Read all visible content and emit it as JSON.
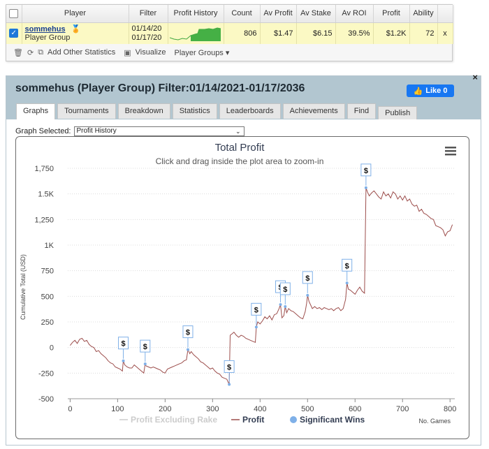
{
  "stats_table": {
    "headers": [
      "Player",
      "Filter",
      "Profit History",
      "Count",
      "Av Profit",
      "Av Stake",
      "Av ROI",
      "Profit",
      "Ability"
    ],
    "row": {
      "player": "sommehus",
      "player_sub": "Player Group",
      "filter_from": "01/14/20",
      "filter_to": "01/17/20",
      "count": "806",
      "av_profit": "$1.47",
      "av_stake": "$6.15",
      "av_roi": "39.5%",
      "profit": "$1.2K",
      "ability": "72",
      "remove": "x"
    },
    "toolbar": {
      "add_stats": "Add Other Statistics",
      "visualize": "Visualize",
      "player_groups": "Player Groups"
    }
  },
  "panel": {
    "title": "sommehus (Player Group) Filter:01/14/2021-01/17/2036",
    "like": "Like 0",
    "close": "×",
    "tabs": [
      "Graphs",
      "Tournaments",
      "Breakdown",
      "Statistics",
      "Leaderboards",
      "Achievements",
      "Find",
      "Publish"
    ],
    "graph_selected_label": "Graph Selected:",
    "graph_selected_value": "Profit History"
  },
  "colors": {
    "profit_line": "#9c4d4b",
    "significant_win": "#7fb0e8",
    "rake_line": "#cccccc",
    "title": "#333d52"
  },
  "chart_data": {
    "type": "line",
    "title": "Total Profit",
    "subtitle": "Click and drag inside the plot area to zoom-in",
    "xlabel": "No. Games",
    "ylabel": "Cumulative Total (USD)",
    "xlim": [
      -5,
      810
    ],
    "ylim": [
      -500,
      1750
    ],
    "x_ticks": [
      0,
      100,
      200,
      300,
      400,
      500,
      600,
      700,
      800
    ],
    "y_ticks": [
      -500,
      -250,
      0,
      250,
      500,
      750,
      1000,
      1250,
      1500,
      1750
    ],
    "y_tick_labels": [
      "-500",
      "-250",
      "0",
      "250",
      "500",
      "750",
      "1K",
      "1,250",
      "1.5K",
      "1,750"
    ],
    "legend": [
      "Profit Excluding Rake",
      "Profit",
      "Significant Wins"
    ],
    "legend_placement": "bottom",
    "series": [
      {
        "name": "Profit",
        "points": [
          [
            0,
            20
          ],
          [
            5,
            50
          ],
          [
            10,
            70
          ],
          [
            15,
            40
          ],
          [
            20,
            80
          ],
          [
            25,
            90
          ],
          [
            30,
            60
          ],
          [
            35,
            70
          ],
          [
            40,
            30
          ],
          [
            45,
            10
          ],
          [
            50,
            0
          ],
          [
            55,
            -40
          ],
          [
            60,
            -30
          ],
          [
            65,
            -60
          ],
          [
            70,
            -80
          ],
          [
            75,
            -100
          ],
          [
            80,
            -130
          ],
          [
            85,
            -150
          ],
          [
            90,
            -160
          ],
          [
            95,
            -190
          ],
          [
            100,
            -200
          ],
          [
            105,
            -210
          ],
          [
            110,
            -230
          ],
          [
            112,
            -130
          ],
          [
            115,
            -170
          ],
          [
            120,
            -190
          ],
          [
            125,
            -200
          ],
          [
            130,
            -200
          ],
          [
            135,
            -170
          ],
          [
            140,
            -190
          ],
          [
            145,
            -210
          ],
          [
            150,
            -230
          ],
          [
            155,
            -250
          ],
          [
            158,
            -160
          ],
          [
            160,
            -180
          ],
          [
            165,
            -190
          ],
          [
            170,
            -200
          ],
          [
            175,
            -190
          ],
          [
            180,
            -200
          ],
          [
            185,
            -210
          ],
          [
            190,
            -220
          ],
          [
            195,
            -240
          ],
          [
            200,
            -250
          ],
          [
            205,
            -210
          ],
          [
            210,
            -200
          ],
          [
            215,
            -190
          ],
          [
            220,
            -180
          ],
          [
            225,
            -170
          ],
          [
            230,
            -160
          ],
          [
            235,
            -150
          ],
          [
            240,
            -130
          ],
          [
            245,
            -120
          ],
          [
            248,
            -20
          ],
          [
            252,
            -60
          ],
          [
            255,
            -40
          ],
          [
            260,
            -70
          ],
          [
            265,
            -90
          ],
          [
            270,
            -110
          ],
          [
            275,
            -140
          ],
          [
            280,
            -150
          ],
          [
            285,
            -170
          ],
          [
            290,
            -190
          ],
          [
            295,
            -210
          ],
          [
            300,
            -200
          ],
          [
            305,
            -230
          ],
          [
            310,
            -250
          ],
          [
            315,
            -260
          ],
          [
            320,
            -290
          ],
          [
            325,
            -300
          ],
          [
            330,
            -310
          ],
          [
            335,
            -360
          ],
          [
            337,
            120
          ],
          [
            340,
            130
          ],
          [
            345,
            150
          ],
          [
            350,
            120
          ],
          [
            355,
            100
          ],
          [
            360,
            120
          ],
          [
            365,
            110
          ],
          [
            370,
            90
          ],
          [
            375,
            80
          ],
          [
            380,
            70
          ],
          [
            385,
            60
          ],
          [
            390,
            50
          ],
          [
            392,
            200
          ],
          [
            395,
            250
          ],
          [
            400,
            230
          ],
          [
            405,
            260
          ],
          [
            410,
            300
          ],
          [
            415,
            280
          ],
          [
            420,
            310
          ],
          [
            425,
            270
          ],
          [
            430,
            320
          ],
          [
            435,
            330
          ],
          [
            440,
            380
          ],
          [
            443,
            420
          ],
          [
            446,
            290
          ],
          [
            450,
            310
          ],
          [
            453,
            400
          ],
          [
            456,
            340
          ],
          [
            460,
            380
          ],
          [
            465,
            360
          ],
          [
            470,
            350
          ],
          [
            475,
            330
          ],
          [
            480,
            310
          ],
          [
            485,
            290
          ],
          [
            490,
            280
          ],
          [
            495,
            350
          ],
          [
            498,
            430
          ],
          [
            500,
            510
          ],
          [
            503,
            450
          ],
          [
            506,
            420
          ],
          [
            510,
            380
          ],
          [
            515,
            400
          ],
          [
            520,
            380
          ],
          [
            525,
            390
          ],
          [
            530,
            370
          ],
          [
            535,
            390
          ],
          [
            540,
            380
          ],
          [
            545,
            370
          ],
          [
            550,
            380
          ],
          [
            555,
            360
          ],
          [
            560,
            380
          ],
          [
            565,
            390
          ],
          [
            570,
            360
          ],
          [
            575,
            380
          ],
          [
            580,
            470
          ],
          [
            583,
            630
          ],
          [
            586,
            570
          ],
          [
            590,
            560
          ],
          [
            595,
            540
          ],
          [
            600,
            520
          ],
          [
            605,
            560
          ],
          [
            610,
            590
          ],
          [
            615,
            550
          ],
          [
            620,
            530
          ],
          [
            623,
            1560
          ],
          [
            626,
            1520
          ],
          [
            630,
            1480
          ],
          [
            635,
            1510
          ],
          [
            640,
            1530
          ],
          [
            645,
            1500
          ],
          [
            650,
            1470
          ],
          [
            655,
            1450
          ],
          [
            660,
            1520
          ],
          [
            665,
            1480
          ],
          [
            670,
            1500
          ],
          [
            675,
            1460
          ],
          [
            680,
            1520
          ],
          [
            685,
            1500
          ],
          [
            690,
            1450
          ],
          [
            695,
            1480
          ],
          [
            700,
            1440
          ],
          [
            705,
            1480
          ],
          [
            710,
            1430
          ],
          [
            715,
            1450
          ],
          [
            720,
            1400
          ],
          [
            725,
            1380
          ],
          [
            730,
            1390
          ],
          [
            735,
            1330
          ],
          [
            740,
            1350
          ],
          [
            745,
            1310
          ],
          [
            750,
            1300
          ],
          [
            755,
            1280
          ],
          [
            760,
            1260
          ],
          [
            765,
            1250
          ],
          [
            770,
            1190
          ],
          [
            775,
            1180
          ],
          [
            780,
            1170
          ],
          [
            785,
            1150
          ],
          [
            790,
            1090
          ],
          [
            795,
            1130
          ],
          [
            800,
            1140
          ],
          [
            805,
            1200
          ]
        ]
      }
    ],
    "significant_wins": [
      [
        112,
        -130
      ],
      [
        158,
        -160
      ],
      [
        248,
        -20
      ],
      [
        335,
        -360
      ],
      [
        392,
        200
      ],
      [
        443,
        420
      ],
      [
        453,
        400
      ],
      [
        500,
        510
      ],
      [
        583,
        630
      ],
      [
        623,
        1560
      ]
    ]
  }
}
